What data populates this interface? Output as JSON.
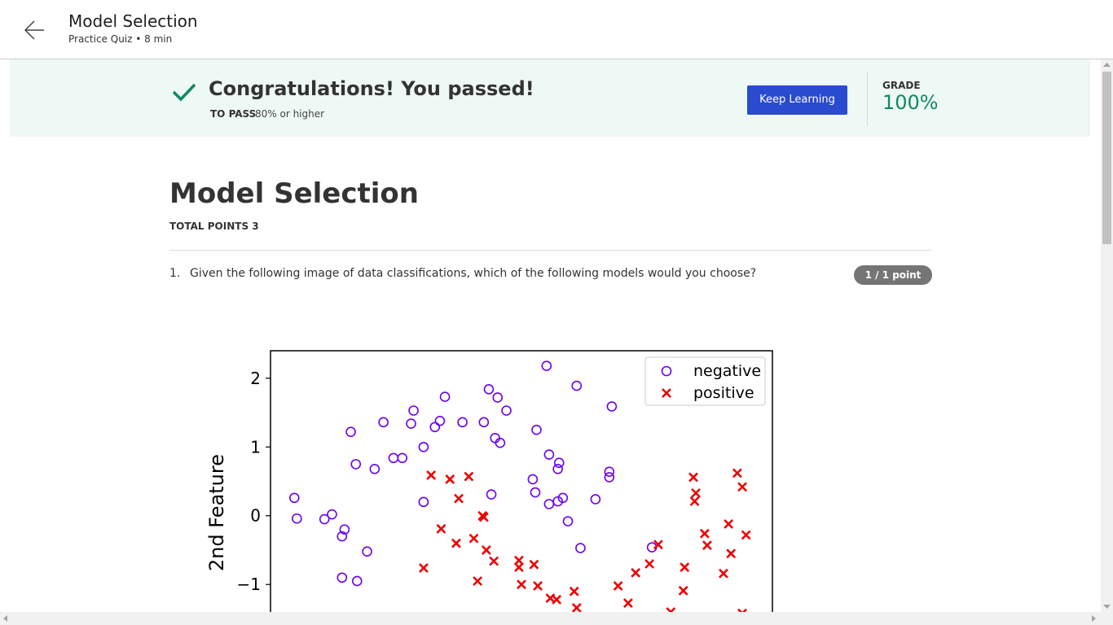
{
  "header": {
    "title": "Model Selection",
    "subtitle": "Practice Quiz • 8 min"
  },
  "banner": {
    "message": "Congratulations! You passed!",
    "to_pass_label": "TO PASS",
    "to_pass_value": "80% or higher",
    "button": "Keep Learning",
    "grade_label": "GRADE",
    "grade_value": "100%"
  },
  "quiz": {
    "title": "Model Selection",
    "total_points": "TOTAL POINTS 3"
  },
  "question": {
    "number": "1.",
    "text": "Given the following image of data classifications, which of the following models would you choose?",
    "score": "1 / 1 point"
  },
  "chart_data": {
    "type": "scatter",
    "ylabel": "2nd Feature",
    "xlim": [
      -1.5,
      2.5
    ],
    "ylim": [
      -1.4,
      2.4
    ],
    "yticks": [
      2,
      1,
      0,
      {
        "value": -1,
        "label": "−1"
      }
    ],
    "legend": "upper right",
    "series": [
      {
        "name": "negative",
        "color": "#6a00f4",
        "marker": "circle",
        "x": [
          -1.31,
          -1.29,
          -1.07,
          -1.01,
          -0.93,
          -0.91,
          -0.93,
          -0.81,
          -0.73,
          -0.86,
          -0.82,
          -0.67,
          -0.6,
          -0.52,
          -0.45,
          -0.38,
          -0.36,
          -0.28,
          -0.19,
          -0.15,
          -0.11,
          0.03,
          0.2,
          0.24,
          0.31,
          0.38,
          0.29,
          0.33,
          0.26,
          -0.28,
          0.59,
          0.61,
          0.62,
          0.7,
          0.72,
          0.8,
          0.79,
          0.72,
          0.79,
          0.83,
          0.87,
          0.97,
          0.94,
          1.09,
          1.22,
          1.2,
          1.2,
          1.54
        ],
        "values": [
          0.26,
          -0.04,
          -0.05,
          0.02,
          -0.3,
          -0.2,
          -0.9,
          -0.95,
          -0.52,
          1.22,
          0.75,
          0.68,
          1.36,
          0.84,
          0.84,
          1.34,
          1.53,
          1.0,
          1.29,
          1.38,
          1.73,
          1.36,
          1.36,
          1.84,
          1.72,
          1.53,
          1.13,
          1.06,
          0.31,
          0.2,
          0.53,
          0.34,
          1.25,
          2.18,
          0.89,
          0.77,
          0.68,
          0.17,
          0.21,
          0.26,
          -0.08,
          -0.47,
          1.89,
          0.24,
          1.59,
          0.64,
          0.56,
          -0.46
        ]
      },
      {
        "name": "positive",
        "color": "#ee0000",
        "marker": "x",
        "x": [
          -0.22,
          -0.07,
          0.08,
          0.0,
          0.19,
          0.2,
          -0.14,
          -0.02,
          0.12,
          0.22,
          0.28,
          -0.28,
          0.15,
          0.48,
          0.48,
          0.6,
          0.5,
          0.63,
          0.73,
          0.78,
          0.92,
          0.94,
          1.27,
          1.35,
          1.41,
          1.52,
          1.59,
          1.8,
          1.79,
          1.87,
          1.89,
          1.88,
          1.96,
          1.98,
          2.15,
          2.17,
          2.11,
          2.22,
          2.26,
          2.29,
          1.69,
          2.26
        ],
        "values": [
          0.59,
          0.53,
          0.57,
          0.25,
          0.0,
          -0.02,
          -0.19,
          -0.4,
          -0.33,
          -0.5,
          -0.66,
          -0.76,
          -0.95,
          -0.65,
          -0.75,
          -0.71,
          -1.0,
          -1.02,
          -1.2,
          -1.22,
          -1.1,
          -1.34,
          -1.02,
          -1.27,
          -0.83,
          -0.7,
          -0.42,
          -0.75,
          -1.09,
          0.56,
          0.33,
          0.21,
          -0.26,
          -0.43,
          -0.12,
          -0.55,
          -0.84,
          0.62,
          0.42,
          -0.28,
          -1.4,
          -1.42
        ]
      }
    ]
  }
}
